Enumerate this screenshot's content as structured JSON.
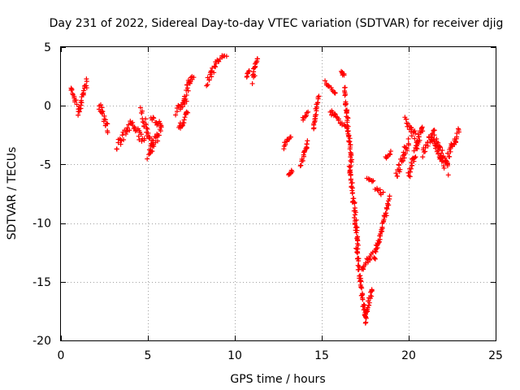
{
  "chart_data": {
    "type": "scatter",
    "title": "Day 231 of 2022, Sidereal Day-to-day VTEC variation (SDTVAR) for receiver djig",
    "xlabel": "GPS time / hours",
    "ylabel": "SDTVAR / TECUs",
    "xlim": [
      0,
      25
    ],
    "ylim": [
      -20,
      5
    ],
    "xticks": [
      0,
      5,
      10,
      15,
      20,
      25
    ],
    "yticks": [
      -20,
      -15,
      -10,
      -5,
      0,
      5
    ],
    "grid": true,
    "marker": "plus",
    "marker_color": "#ff0000",
    "segments": [
      {
        "x0": 0.55,
        "x1": 0.9,
        "y0": 1.5,
        "y1": 0.3,
        "spread": 0.5
      },
      {
        "x0": 0.95,
        "x1": 1.5,
        "y0": -0.8,
        "y1": 2.0,
        "spread": 0.6
      },
      {
        "x0": 2.2,
        "x1": 2.7,
        "y0": 0.0,
        "y1": -2.0,
        "spread": 0.9
      },
      {
        "x0": 3.2,
        "x1": 4.0,
        "y0": -3.5,
        "y1": -1.8,
        "spread": 0.9
      },
      {
        "x0": 4.0,
        "x1": 4.8,
        "y0": -1.5,
        "y1": -3.0,
        "spread": 0.8
      },
      {
        "x0": 4.6,
        "x1": 5.3,
        "y0": -0.5,
        "y1": -3.5,
        "spread": 0.9
      },
      {
        "x0": 5.0,
        "x1": 5.8,
        "y0": -4.2,
        "y1": -2.0,
        "spread": 0.8
      },
      {
        "x0": 5.2,
        "x1": 5.8,
        "y0": -1.0,
        "y1": -1.8,
        "spread": 0.5
      },
      {
        "x0": 6.6,
        "x1": 7.2,
        "y0": -0.5,
        "y1": 0.5,
        "spread": 0.6
      },
      {
        "x0": 6.8,
        "x1": 7.3,
        "y0": -2.0,
        "y1": -0.5,
        "spread": 0.5
      },
      {
        "x0": 7.0,
        "x1": 7.6,
        "y0": 0.5,
        "y1": 2.8,
        "spread": 0.8
      },
      {
        "x0": 8.4,
        "x1": 8.9,
        "y0": 2.0,
        "y1": 3.5,
        "spread": 0.8
      },
      {
        "x0": 8.9,
        "x1": 9.5,
        "y0": 3.8,
        "y1": 4.3,
        "spread": 0.4
      },
      {
        "x0": 10.7,
        "x1": 10.8,
        "y0": 2.5,
        "y1": 3.0,
        "spread": 0.3
      },
      {
        "x0": 11.0,
        "x1": 11.3,
        "y0": 2.2,
        "y1": 4.0,
        "spread": 0.8
      },
      {
        "x0": 12.8,
        "x1": 13.2,
        "y0": -3.5,
        "y1": -2.5,
        "spread": 0.4
      },
      {
        "x0": 13.1,
        "x1": 13.3,
        "y0": -6.0,
        "y1": -5.5,
        "spread": 0.3
      },
      {
        "x0": 13.8,
        "x1": 14.2,
        "y0": -5.0,
        "y1": -3.0,
        "spread": 0.5
      },
      {
        "x0": 13.9,
        "x1": 14.2,
        "y0": -1.2,
        "y1": -0.6,
        "spread": 0.3
      },
      {
        "x0": 14.5,
        "x1": 14.8,
        "y0": -2.0,
        "y1": 0.8,
        "spread": 0.3
      },
      {
        "x0": 15.2,
        "x1": 15.8,
        "y0": 2.0,
        "y1": 1.0,
        "spread": 0.3
      },
      {
        "x0": 15.5,
        "x1": 16.5,
        "y0": -0.5,
        "y1": -2.0,
        "spread": 0.4
      },
      {
        "x0": 16.1,
        "x1": 16.3,
        "y0": 3.0,
        "y1": 2.5,
        "spread": 0.3
      },
      {
        "x0": 16.3,
        "x1": 16.7,
        "y0": 1.5,
        "y1": -5.0,
        "spread": 0.8
      },
      {
        "x0": 16.6,
        "x1": 17.1,
        "y0": -5.0,
        "y1": -12.0,
        "spread": 0.9
      },
      {
        "x0": 17.0,
        "x1": 17.5,
        "y0": -12.0,
        "y1": -18.3,
        "spread": 0.7
      },
      {
        "x0": 17.5,
        "x1": 17.9,
        "y0": -18.3,
        "y1": -15.5,
        "spread": 0.6
      },
      {
        "x0": 17.3,
        "x1": 17.9,
        "y0": -14.0,
        "y1": -12.5,
        "spread": 0.6
      },
      {
        "x0": 17.6,
        "x1": 18.0,
        "y0": -6.3,
        "y1": -6.5,
        "spread": 0.3
      },
      {
        "x0": 18.1,
        "x1": 18.5,
        "y0": -7.0,
        "y1": -7.5,
        "spread": 0.3
      },
      {
        "x0": 18.0,
        "x1": 18.9,
        "y0": -13.0,
        "y1": -8.0,
        "spread": 0.6
      },
      {
        "x0": 18.7,
        "x1": 19.0,
        "y0": -4.5,
        "y1": -4.0,
        "spread": 0.3
      },
      {
        "x0": 19.3,
        "x1": 20.0,
        "y0": -6.0,
        "y1": -3.0,
        "spread": 0.9
      },
      {
        "x0": 19.8,
        "x1": 20.5,
        "y0": -1.0,
        "y1": -3.0,
        "spread": 0.8
      },
      {
        "x0": 20.0,
        "x1": 20.8,
        "y0": -6.0,
        "y1": -1.8,
        "spread": 0.9
      },
      {
        "x0": 20.8,
        "x1": 21.5,
        "y0": -4.0,
        "y1": -2.0,
        "spread": 0.8
      },
      {
        "x0": 21.3,
        "x1": 22.0,
        "y0": -2.5,
        "y1": -5.0,
        "spread": 0.8
      },
      {
        "x0": 21.6,
        "x1": 22.3,
        "y0": -3.0,
        "y1": -5.5,
        "spread": 0.8
      },
      {
        "x0": 22.2,
        "x1": 22.9,
        "y0": -4.5,
        "y1": -2.0,
        "spread": 0.9
      }
    ]
  }
}
